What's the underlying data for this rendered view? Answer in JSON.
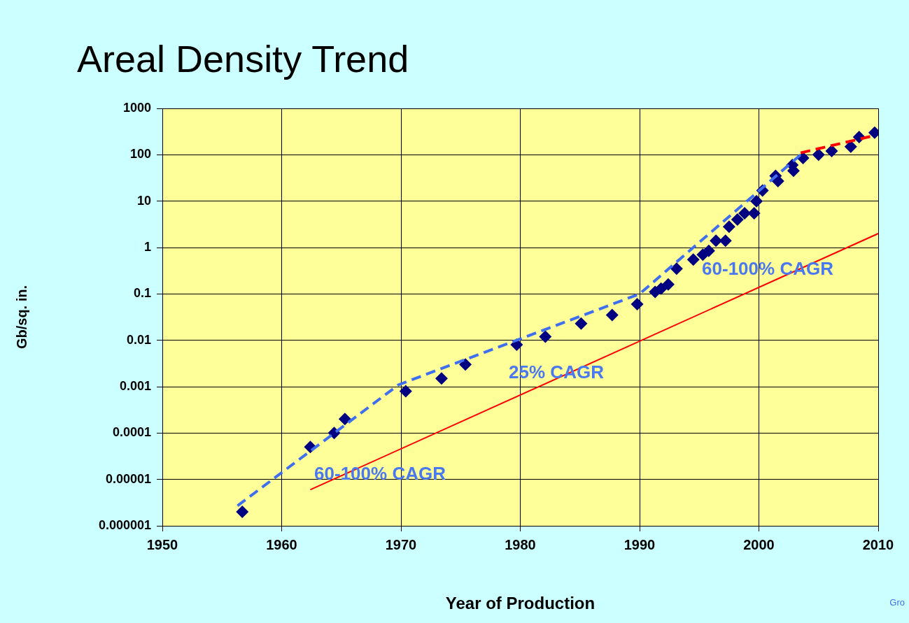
{
  "chart_data": {
    "type": "scatter",
    "title": "Areal Density Trend",
    "xlabel": "Year of Production",
    "ylabel": "Gb/sq. in.",
    "xlim": [
      1950,
      2010
    ],
    "xticks": [
      1950,
      1960,
      1970,
      1980,
      1990,
      2000,
      2010
    ],
    "ylim": [
      1e-06,
      1000
    ],
    "yticks": [
      {
        "value": 1e-06,
        "label": "0.000001"
      },
      {
        "value": 1e-05,
        "label": "0.00001"
      },
      0.0001,
      0.001,
      0.01,
      0.1,
      1,
      10,
      100,
      1000
    ],
    "log": "y",
    "grid": true,
    "series": [
      {
        "color": "#000080",
        "marker": "diamond",
        "x": [
          1956.7,
          1962.4,
          1964.4,
          1965.3,
          1970.4,
          1973.4,
          1975.4,
          1979.7,
          1982.1,
          1985.1,
          1987.7,
          1989.8,
          1991.3,
          1991.8,
          1992.4,
          1993.1,
          1994.5,
          1995.3,
          1995.8,
          1996.4,
          1997.2,
          1997.5,
          1998.2,
          1998.8,
          1999.6,
          1999.8,
          2000.3,
          2001.4,
          2001.6,
          2002.8,
          2002.9,
          2003.7,
          2005.0,
          2006.1,
          2007.7,
          2008.4,
          2009.7
        ],
        "values": [
          2e-06,
          5e-05,
          0.0001,
          0.0002,
          0.0008,
          0.0015,
          0.003,
          0.008,
          0.012,
          0.023,
          0.035,
          0.06,
          0.11,
          0.13,
          0.16,
          0.35,
          0.55,
          0.7,
          0.85,
          1.4,
          1.4,
          2.8,
          4,
          5.5,
          5.5,
          10,
          17,
          35,
          27,
          60,
          45,
          85,
          100,
          120,
          150,
          240,
          300
        ]
      },
      {
        "type": "line",
        "color": "#3f6fee",
        "line_style": "dashed",
        "marker": "none",
        "x": [
          1956.3,
          1969.8,
          1990,
          2003.5
        ],
        "values": [
          2.7e-06,
          0.0011,
          0.1,
          100
        ]
      },
      {
        "type": "line",
        "color": "#ff0000",
        "line_style": "dashed",
        "marker": "none",
        "x": [
          2003.5,
          2009.7
        ],
        "values": [
          110,
          260
        ]
      },
      {
        "type": "line",
        "color": "#ff0000",
        "line_style": "solid",
        "marker": "none",
        "x": [
          1962.4,
          2010
        ],
        "values": [
          6e-06,
          2
        ]
      }
    ],
    "annotations": [
      "60-100% CAGR",
      "25% CAGR",
      "60-100% CAGR",
      "Gro"
    ]
  }
}
